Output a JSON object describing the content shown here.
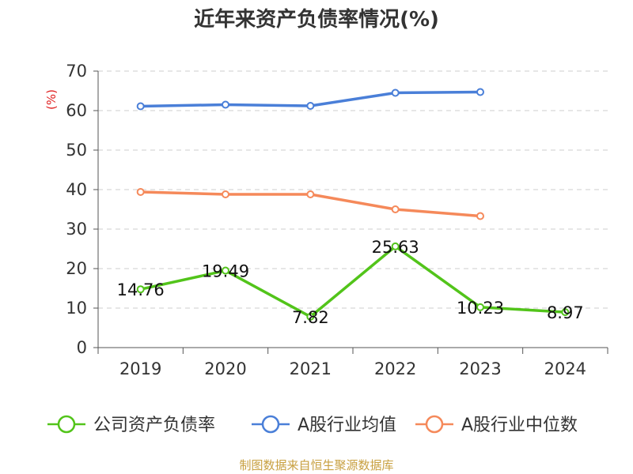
{
  "chart_data": {
    "type": "line",
    "title": "近年来资产负债率情况(%)",
    "ylabel": "(%)",
    "xlabel": "",
    "categories": [
      "2019",
      "2020",
      "2021",
      "2022",
      "2023",
      "2024"
    ],
    "ylim": [
      0,
      70
    ],
    "yticks": [
      0,
      10,
      20,
      30,
      40,
      50,
      60,
      70
    ],
    "grid": true,
    "legend_position": "bottom",
    "series": [
      {
        "name": "公司资产负债率",
        "color": "#52c41a",
        "values": [
          14.76,
          19.49,
          7.82,
          25.63,
          10.23,
          8.97
        ],
        "labels": [
          "14.76",
          "19.49",
          "7.82",
          "25.63",
          "10.23",
          "8.97"
        ]
      },
      {
        "name": "A股行业均值",
        "color": "#4a7fd8",
        "values": [
          61.1,
          61.5,
          61.2,
          64.5,
          64.7,
          null
        ]
      },
      {
        "name": "A股行业中位数",
        "color": "#f5895a",
        "values": [
          39.4,
          38.8,
          38.8,
          35.0,
          33.3,
          null
        ]
      }
    ]
  },
  "source_note": "制图数据来自恒生聚源数据库"
}
